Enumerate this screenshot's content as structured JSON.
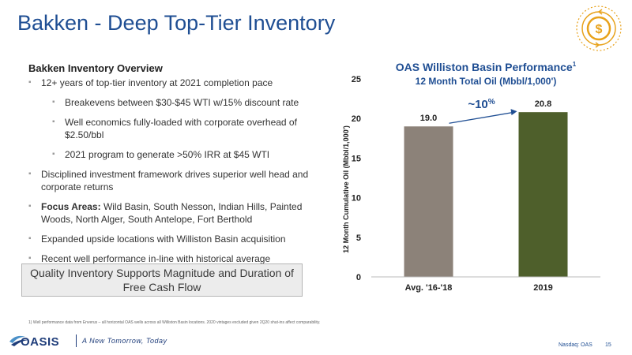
{
  "slide": {
    "title": "Bakken - Deep Top-Tier Inventory",
    "badge_icon": "dollar-cycle-icon",
    "accent_color": "#e8a21b",
    "brand_color": "#1f4e93"
  },
  "overview": {
    "title": "Bakken Inventory Overview",
    "bullets": [
      "12+ years of top-tier inventory at 2021 completion pace",
      "Breakevens between $30-$45 WTI w/15% discount rate",
      "Well economics fully-loaded with corporate overhead of $2.50/bbl",
      "2021 program to generate >50% IRR at $45 WTI",
      "Disciplined investment framework drives superior well head and corporate returns",
      "Wild Basin, South Nesson, Indian Hills, Painted Woods, North Alger, South Antelope, Fort Berthold",
      "Expanded upside locations with Williston Basin acquisition",
      "Recent well performance in-line with historical average"
    ],
    "focus_lead": "Focus Areas:",
    "callout": "Quality Inventory Supports Magnitude and Duration of Free Cash Flow"
  },
  "chart_data": {
    "type": "bar",
    "title": "OAS Williston Basin Performance",
    "title_footnote": "1",
    "subtitle": "12 Month Total Oil (Mbbl/1,000')",
    "ylabel": "12 Month Cumulative Oil (Mbbl/1,000')",
    "xlabel": "",
    "categories": [
      "Avg. '16-'18",
      "2019"
    ],
    "values": [
      19.0,
      20.8
    ],
    "value_labels": [
      "19.0",
      "20.8"
    ],
    "colors": [
      "#8c8279",
      "#4e5f2b"
    ],
    "ylim": [
      0,
      25
    ],
    "yticks": [
      0,
      5,
      10,
      15,
      20,
      25
    ],
    "grid": false,
    "annotation": {
      "text": "~10",
      "suffix": "%"
    }
  },
  "footer": {
    "footnote": "1)  Well performance data from Enverus – all horizontal OAS wells across all Williston Basin locations. 2020 vintages excluded given 2Q20 shut-ins affect comparability.",
    "logo_text": "OASIS",
    "tagline": "A New Tomorrow, Today",
    "ticker": "Nasdaq: OAS",
    "page": "15"
  }
}
